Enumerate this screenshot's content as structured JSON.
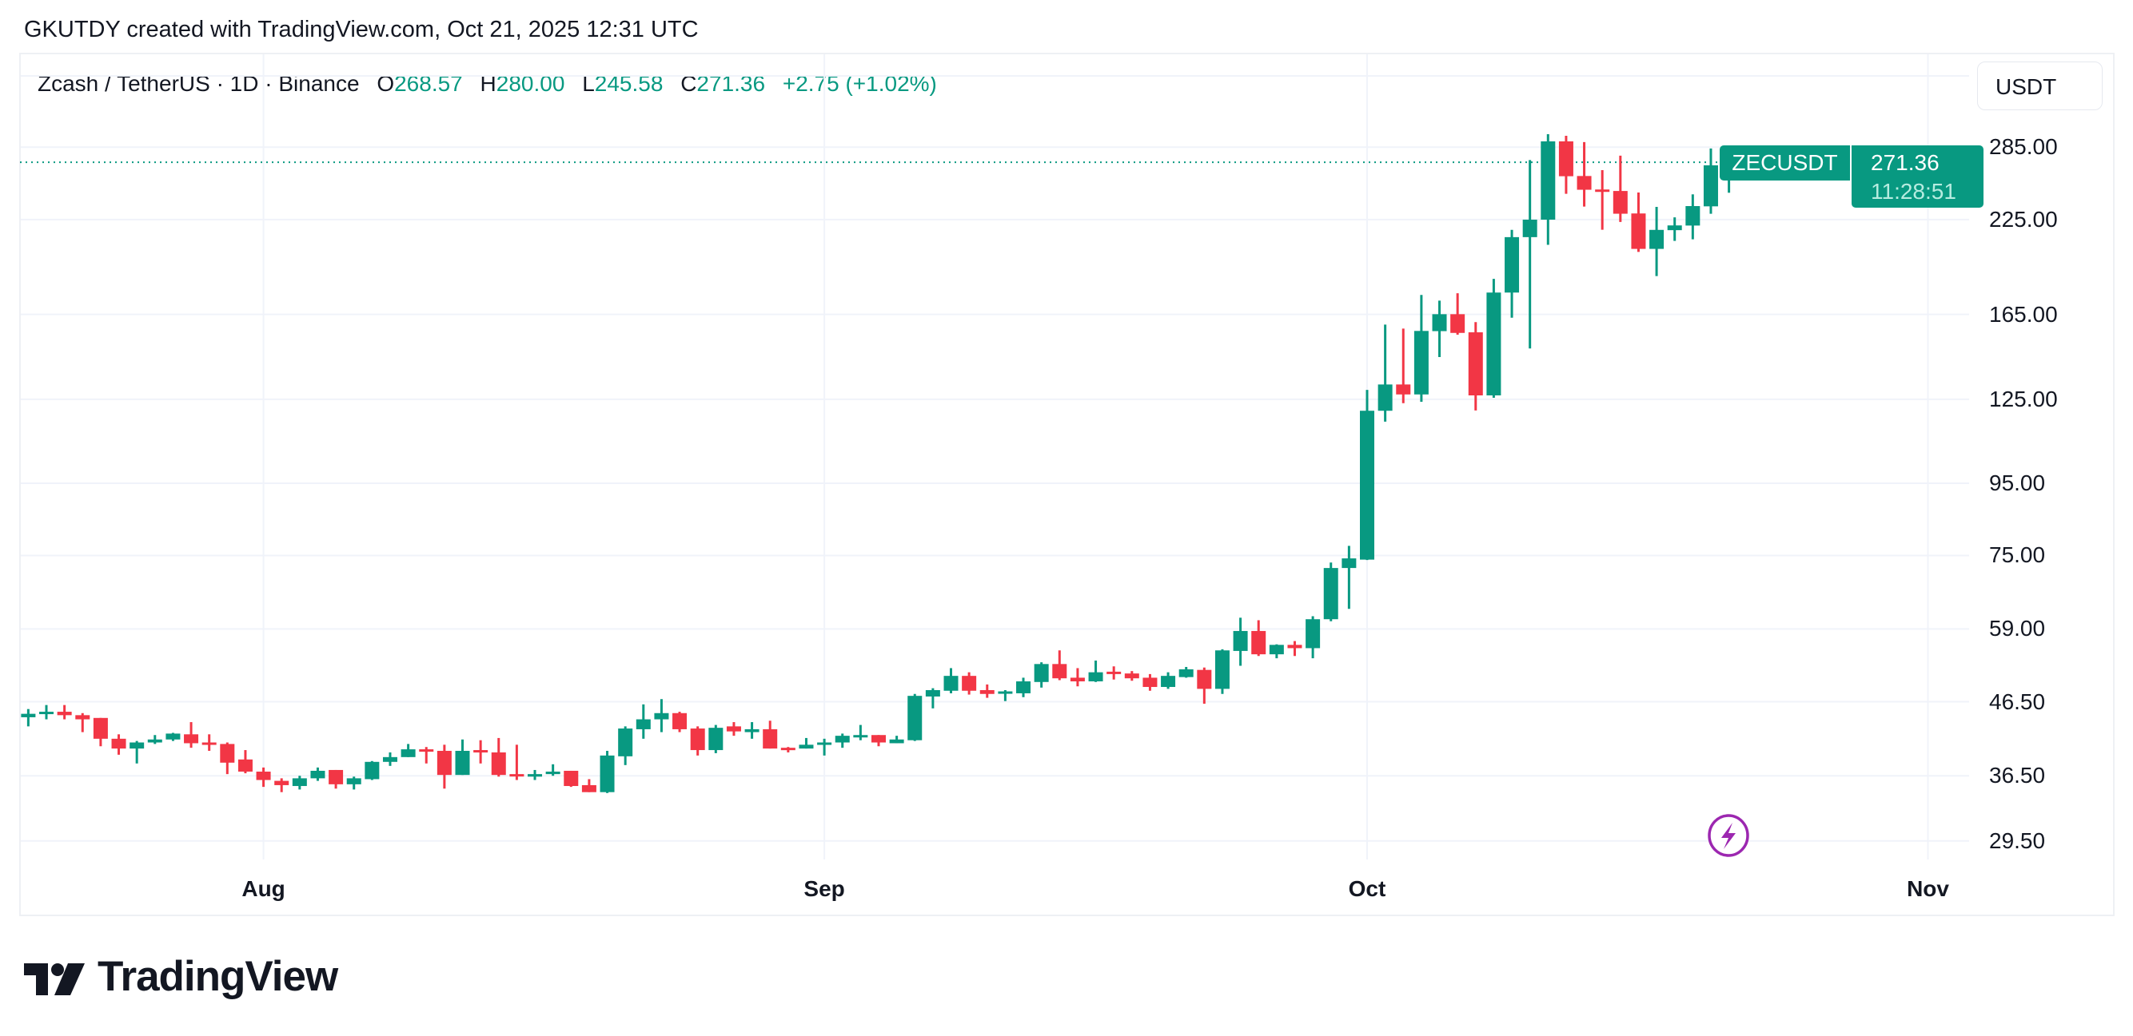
{
  "header": {
    "credit": "GKUTDY created with TradingView.com, Oct 21, 2025 12:31 UTC"
  },
  "legend": {
    "symbol": "Zcash / TetherUS · 1D · Binance",
    "open_label": "O",
    "open": "268.57",
    "high_label": "H",
    "high": "280.00",
    "low_label": "L",
    "low": "245.58",
    "close_label": "C",
    "close": "271.36",
    "change": "+2.75 (+1.02%)"
  },
  "currency_button": "USDT",
  "last_price_badge": {
    "symbol": "ZECUSDT",
    "price": "271.36",
    "countdown": "11:28:51"
  },
  "price_axis": {
    "labels": [
      "285.00",
      "225.00",
      "165.00",
      "125.00",
      "95.00",
      "75.00",
      "59.00",
      "46.50",
      "36.50",
      "29.50"
    ]
  },
  "time_axis": {
    "labels": [
      "Aug",
      "Sep",
      "Oct",
      "Nov"
    ]
  },
  "logo": {
    "text": "TradingView"
  },
  "icons": {
    "event": "lightning-icon"
  },
  "colors": {
    "up": "#089981",
    "down": "#f23645",
    "grid": "#f0f3fa",
    "event": "#9c27b0"
  },
  "chart_data": {
    "type": "candlestick",
    "title": "Zcash / TetherUS · 1D · Binance",
    "y_scale": "log",
    "ylim": [
      28,
      300
    ],
    "grid": true,
    "x_ticks": [
      "2025-08-01",
      "2025-09-01",
      "2025-10-01",
      "2025-11-01"
    ],
    "y_ticks": [
      285,
      225,
      165,
      125,
      95,
      75,
      59,
      46.5,
      36.5,
      29.5
    ],
    "last_price": 271.36,
    "columns": [
      "date",
      "open",
      "high",
      "low",
      "close"
    ],
    "candles": [
      [
        "2025-07-19",
        44.2,
        45.4,
        42.9,
        44.7
      ],
      [
        "2025-07-20",
        44.7,
        46.0,
        43.9,
        45.0
      ],
      [
        "2025-07-21",
        45.0,
        46.0,
        43.9,
        44.5
      ],
      [
        "2025-07-22",
        44.5,
        44.8,
        42.1,
        43.9
      ],
      [
        "2025-07-23",
        44.1,
        44.1,
        40.2,
        41.2
      ],
      [
        "2025-07-24",
        41.2,
        41.8,
        39.1,
        39.9
      ],
      [
        "2025-07-25",
        39.9,
        40.9,
        38.0,
        40.7
      ],
      [
        "2025-07-26",
        40.7,
        41.7,
        40.5,
        41.1
      ],
      [
        "2025-07-27",
        41.1,
        42.0,
        40.9,
        41.9
      ],
      [
        "2025-07-28",
        41.8,
        43.5,
        40.0,
        40.6
      ],
      [
        "2025-07-29",
        40.7,
        41.8,
        39.6,
        40.6
      ],
      [
        "2025-07-30",
        40.5,
        40.7,
        36.7,
        38.1
      ],
      [
        "2025-07-31",
        38.5,
        39.7,
        36.8,
        37.0
      ],
      [
        "2025-08-01",
        37.0,
        37.5,
        35.2,
        36.0
      ],
      [
        "2025-08-02",
        35.9,
        36.2,
        34.6,
        35.4
      ],
      [
        "2025-08-03",
        35.3,
        36.5,
        34.9,
        36.2
      ],
      [
        "2025-08-04",
        36.2,
        37.5,
        35.9,
        37.1
      ],
      [
        "2025-08-05",
        37.2,
        37.2,
        35.0,
        35.5
      ],
      [
        "2025-08-06",
        35.5,
        36.4,
        34.9,
        36.2
      ],
      [
        "2025-08-07",
        36.1,
        38.3,
        36.0,
        38.2
      ],
      [
        "2025-08-08",
        38.2,
        39.4,
        37.7,
        38.8
      ],
      [
        "2025-08-09",
        38.8,
        40.5,
        38.8,
        39.8
      ],
      [
        "2025-08-10",
        39.8,
        40.1,
        38.0,
        39.6
      ],
      [
        "2025-08-11",
        39.6,
        40.4,
        35.0,
        36.6
      ],
      [
        "2025-08-12",
        36.6,
        41.1,
        36.6,
        39.6
      ],
      [
        "2025-08-13",
        39.7,
        41.0,
        38.0,
        39.4
      ],
      [
        "2025-08-14",
        39.4,
        41.3,
        36.4,
        36.6
      ],
      [
        "2025-08-15",
        36.7,
        40.4,
        36.0,
        36.6
      ],
      [
        "2025-08-16",
        36.4,
        37.2,
        36.0,
        36.7
      ],
      [
        "2025-08-17",
        36.7,
        37.9,
        36.5,
        37.0
      ],
      [
        "2025-08-18",
        37.1,
        37.1,
        35.2,
        35.3
      ],
      [
        "2025-08-19",
        35.4,
        36.1,
        34.6,
        34.6
      ],
      [
        "2025-08-20",
        34.6,
        39.6,
        34.5,
        39.0
      ],
      [
        "2025-08-21",
        38.9,
        42.9,
        37.8,
        42.6
      ],
      [
        "2025-08-22",
        42.5,
        46.1,
        41.2,
        43.9
      ],
      [
        "2025-08-23",
        43.9,
        46.9,
        42.1,
        44.8
      ],
      [
        "2025-08-24",
        44.8,
        45.0,
        42.1,
        42.5
      ],
      [
        "2025-08-25",
        42.6,
        42.9,
        39.0,
        39.7
      ],
      [
        "2025-08-26",
        39.7,
        43.1,
        39.3,
        42.7
      ],
      [
        "2025-08-27",
        42.9,
        43.5,
        41.6,
        42.2
      ],
      [
        "2025-08-28",
        42.1,
        43.5,
        41.2,
        42.5
      ],
      [
        "2025-08-29",
        42.5,
        43.7,
        39.9,
        39.9
      ],
      [
        "2025-08-30",
        40.0,
        40.1,
        39.4,
        39.9
      ],
      [
        "2025-08-31",
        39.9,
        41.3,
        39.9,
        40.4
      ],
      [
        "2025-09-01",
        40.5,
        41.2,
        39.0,
        40.7
      ],
      [
        "2025-09-02",
        40.7,
        41.9,
        40.0,
        41.6
      ],
      [
        "2025-09-03",
        41.6,
        43.1,
        41.0,
        41.7
      ],
      [
        "2025-09-04",
        41.7,
        41.7,
        40.2,
        40.7
      ],
      [
        "2025-09-05",
        40.6,
        41.6,
        40.6,
        41.1
      ],
      [
        "2025-09-06",
        41.0,
        47.7,
        40.9,
        47.4
      ],
      [
        "2025-09-07",
        47.3,
        48.6,
        45.5,
        48.3
      ],
      [
        "2025-09-08",
        48.2,
        51.9,
        47.8,
        50.6
      ],
      [
        "2025-09-09",
        50.6,
        51.2,
        47.6,
        48.2
      ],
      [
        "2025-09-10",
        48.3,
        49.2,
        47.1,
        47.7
      ],
      [
        "2025-09-11",
        47.8,
        48.3,
        46.6,
        48.1
      ],
      [
        "2025-09-12",
        47.8,
        50.3,
        47.2,
        49.7
      ],
      [
        "2025-09-13",
        49.6,
        52.9,
        48.7,
        52.6
      ],
      [
        "2025-09-14",
        52.6,
        55.0,
        49.9,
        50.2
      ],
      [
        "2025-09-15",
        50.3,
        51.9,
        48.9,
        49.7
      ],
      [
        "2025-09-16",
        49.7,
        53.2,
        49.6,
        51.2
      ],
      [
        "2025-09-17",
        51.3,
        52.2,
        50.0,
        51.2
      ],
      [
        "2025-09-18",
        51.0,
        51.4,
        49.8,
        50.2
      ],
      [
        "2025-09-19",
        50.3,
        50.9,
        48.2,
        48.8
      ],
      [
        "2025-09-20",
        48.8,
        51.2,
        48.5,
        50.6
      ],
      [
        "2025-09-21",
        50.4,
        52.1,
        50.3,
        51.7
      ],
      [
        "2025-09-22",
        51.6,
        52.0,
        46.2,
        48.5
      ],
      [
        "2025-09-23",
        48.5,
        55.2,
        47.7,
        55.0
      ],
      [
        "2025-09-24",
        54.9,
        61.2,
        52.3,
        58.6
      ],
      [
        "2025-09-25",
        58.6,
        60.7,
        54.0,
        54.3
      ],
      [
        "2025-09-26",
        54.3,
        56.1,
        53.6,
        56.0
      ],
      [
        "2025-09-27",
        56.0,
        56.7,
        54.0,
        55.4
      ],
      [
        "2025-09-28",
        55.4,
        61.5,
        53.6,
        60.9
      ],
      [
        "2025-09-29",
        60.9,
        73.3,
        60.5,
        72.0
      ],
      [
        "2025-09-30",
        72.0,
        77.4,
        63.0,
        74.3
      ],
      [
        "2025-10-01",
        74.0,
        128.9,
        73.9,
        120.4
      ],
      [
        "2025-10-02",
        120.4,
        159.6,
        116.2,
        131.2
      ],
      [
        "2025-10-03",
        131.2,
        157.5,
        123.4,
        127.0
      ],
      [
        "2025-10-04",
        127.0,
        175.8,
        124.0,
        156.3
      ],
      [
        "2025-10-05",
        156.2,
        172.6,
        143.5,
        165.1
      ],
      [
        "2025-10-06",
        165.1,
        176.8,
        154.4,
        155.3
      ],
      [
        "2025-10-07",
        155.6,
        160.9,
        120.5,
        126.6
      ],
      [
        "2025-10-08",
        126.6,
        185.3,
        125.6,
        177.2
      ],
      [
        "2025-10-09",
        177.2,
        217.5,
        163.2,
        212.4
      ],
      [
        "2025-10-10",
        212.4,
        273.3,
        147.6,
        224.9
      ],
      [
        "2025-10-11",
        224.9,
        297.4,
        207.1,
        290.5
      ],
      [
        "2025-10-12",
        290.5,
        295.8,
        244.7,
        259.2
      ],
      [
        "2025-10-13",
        259.4,
        289.8,
        234.7,
        248.0
      ],
      [
        "2025-10-14",
        248.2,
        264.4,
        217.6,
        247.0
      ],
      [
        "2025-10-15",
        247.0,
        277.2,
        223.2,
        229.3
      ],
      [
        "2025-10-16",
        229.5,
        245.8,
        202.4,
        204.4
      ],
      [
        "2025-10-17",
        204.4,
        234.5,
        187.0,
        217.5
      ],
      [
        "2025-10-18",
        217.3,
        226.6,
        209.8,
        220.7
      ],
      [
        "2025-10-19",
        220.6,
        244.3,
        210.9,
        235.1
      ],
      [
        "2025-10-20",
        234.9,
        283.8,
        229.3,
        268.61
      ],
      [
        "2025-10-21",
        268.57,
        280.0,
        245.58,
        271.36
      ]
    ]
  }
}
